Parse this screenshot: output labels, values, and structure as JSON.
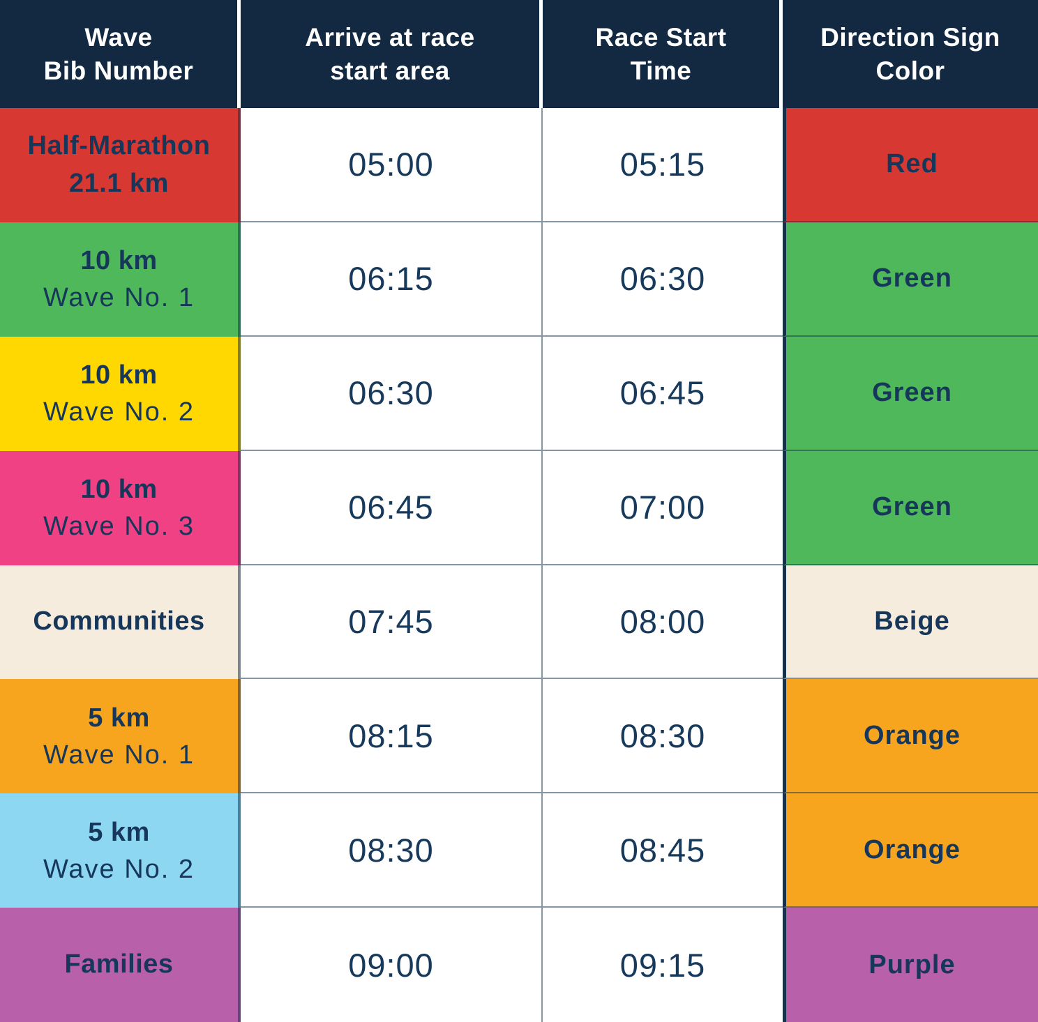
{
  "table": {
    "headers": [
      "Wave\nBib Number",
      "Arrive at race\nstart area",
      "Race Start\nTime",
      "Direction Sign\nColor"
    ],
    "rows": [
      {
        "wave_bold": "Half-Marathon\n21.1 km",
        "wave_regular": "",
        "arrive": "05:00",
        "start": "05:15",
        "sign": "Red",
        "wave_bg": "#d83832",
        "sign_bg": "#d83832"
      },
      {
        "wave_bold": "10 km",
        "wave_regular": "Wave No. 1",
        "arrive": "06:15",
        "start": "06:30",
        "sign": "Green",
        "wave_bg": "#4eb85b",
        "sign_bg": "#4eb85b"
      },
      {
        "wave_bold": "10 km",
        "wave_regular": "Wave No. 2",
        "arrive": "06:30",
        "start": "06:45",
        "sign": "Green",
        "wave_bg": "#ffd701",
        "sign_bg": "#4eb85b"
      },
      {
        "wave_bold": "10 km",
        "wave_regular": "Wave No. 3",
        "arrive": "06:45",
        "start": "07:00",
        "sign": "Green",
        "wave_bg": "#ef4183",
        "sign_bg": "#4eb85b"
      },
      {
        "wave_bold": "Communities",
        "wave_regular": "",
        "arrive": "07:45",
        "start": "08:00",
        "sign": "Beige",
        "wave_bg": "#f5ecdd",
        "sign_bg": "#f5ecdd"
      },
      {
        "wave_bold": "5 km",
        "wave_regular": "Wave No. 1",
        "arrive": "08:15",
        "start": "08:30",
        "sign": "Orange",
        "wave_bg": "#f7a51f",
        "sign_bg": "#f7a51f"
      },
      {
        "wave_bold": "5 km",
        "wave_regular": "Wave No. 2",
        "arrive": "08:30",
        "start": "08:45",
        "sign": "Orange",
        "wave_bg": "#8ed7f3",
        "sign_bg": "#f7a51f"
      },
      {
        "wave_bold": "Families",
        "wave_regular": "",
        "arrive": "09:00",
        "start": "09:15",
        "sign": "Purple",
        "wave_bg": "#b960aa",
        "sign_bg": "#b960aa"
      }
    ]
  },
  "colors": {
    "header_bg": "#132941",
    "header_text": "#ffffff",
    "body_text": "#16375a",
    "grid_line": "#8496a6",
    "column_divider": "#16324a",
    "red": "#d83832",
    "green": "#4eb85b",
    "yellow": "#ffd701",
    "pink": "#ef4183",
    "beige": "#f5ecdd",
    "orange": "#f7a51f",
    "light_blue": "#8ed7f3",
    "purple": "#b960aa"
  },
  "chart_data": {
    "type": "table",
    "title": "Race wave start schedule",
    "columns": [
      "Wave Bib Number",
      "Arrive at race start area",
      "Race Start Time",
      "Direction Sign Color"
    ],
    "rows": [
      [
        "Half-Marathon 21.1 km",
        "05:00",
        "05:15",
        "Red"
      ],
      [
        "10 km Wave No. 1",
        "06:15",
        "06:30",
        "Green"
      ],
      [
        "10 km Wave No. 2",
        "06:30",
        "06:45",
        "Green"
      ],
      [
        "10 km Wave No. 3",
        "06:45",
        "07:00",
        "Green"
      ],
      [
        "Communities",
        "07:45",
        "08:00",
        "Beige"
      ],
      [
        "5 km Wave No. 1",
        "08:15",
        "08:30",
        "Orange"
      ],
      [
        "5 km Wave No. 2",
        "08:30",
        "08:45",
        "Orange"
      ],
      [
        "Families",
        "09:00",
        "09:15",
        "Purple"
      ]
    ],
    "wave_cell_colors": [
      "#d83832",
      "#4eb85b",
      "#ffd701",
      "#ef4183",
      "#f5ecdd",
      "#f7a51f",
      "#8ed7f3",
      "#b960aa"
    ],
    "sign_cell_colors": [
      "#d83832",
      "#4eb85b",
      "#4eb85b",
      "#4eb85b",
      "#f5ecdd",
      "#f7a51f",
      "#f7a51f",
      "#b960aa"
    ]
  }
}
